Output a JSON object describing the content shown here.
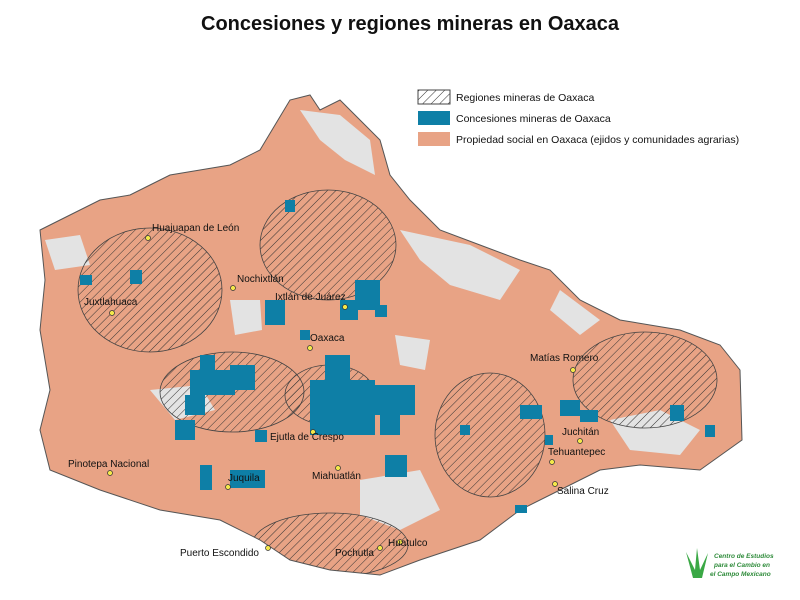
{
  "title": "Concesiones y regiones mineras en Oaxaca",
  "legend": [
    {
      "label": "Regiones mineras de Oaxaca"
    },
    {
      "label": "Concesiones mineras de Oaxaca"
    },
    {
      "label": "Propiedad social en Oaxaca (ejidos y comunidades agrarias)"
    }
  ],
  "cities": [
    "Huajuapan de León",
    "Nochixtlán",
    "Ixtlán de Juárez",
    "Juxtlahuaca",
    "Oaxaca",
    "Matías Romero",
    "Juchitán",
    "Tehuantepec",
    "Ejutla de Crespo",
    "Miahuatlán",
    "Pinotepa Nacional",
    "Juquila",
    "Salina Cruz",
    "Puerto Escondido",
    "Pochutla",
    "Huatulco"
  ],
  "logo": {
    "lines": [
      "Centro de Estudios",
      "para el Cambio en",
      "el Campo Mexicano"
    ]
  }
}
